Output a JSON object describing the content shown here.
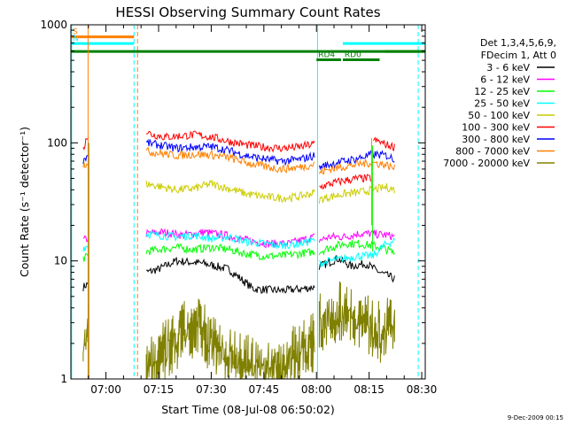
{
  "chart_data": {
    "type": "line",
    "title": "HESSI Observing Summary Count Rates",
    "xlabel": "Start Time (08-Jul-08 06:50:02)",
    "ylabel": "Count Rate (s⁻¹ detector⁻¹)",
    "y_scale": "log",
    "ylim": [
      1,
      1000
    ],
    "xlim_minutes_after_0650": [
      0,
      101
    ],
    "x_ticks": [
      {
        "label": "07:00",
        "minute": 10
      },
      {
        "label": "07:15",
        "minute": 25
      },
      {
        "label": "07:30",
        "minute": 40
      },
      {
        "label": "07:45",
        "minute": 55
      },
      {
        "label": "08:00",
        "minute": 70
      },
      {
        "label": "08:15",
        "minute": 85
      },
      {
        "label": "08:30",
        "minute": 100
      }
    ],
    "y_ticks": [
      {
        "label": "1",
        "value": 1
      },
      {
        "label": "10",
        "value": 10
      },
      {
        "label": "100",
        "value": 100
      },
      {
        "label": "1000",
        "value": 1000
      }
    ],
    "legend": {
      "placement": "right",
      "header": [
        "Det 1,3,4,5,6,9,",
        "FDecim 1, Att 0"
      ]
    },
    "series": [
      {
        "name": "3 - 6 keV",
        "color": "#000000",
        "segments": [
          {
            "x": [
              3.5,
              5.2
            ],
            "y": [
              6.0,
              6.5
            ]
          },
          {
            "x": [
              21.5,
              25,
              30,
              38,
              45,
              52,
              60,
              66,
              69.5
            ],
            "y": [
              8.0,
              8.5,
              10,
              9.5,
              8.5,
              5.8,
              5.6,
              5.8,
              6.0
            ]
          },
          {
            "x": [
              70.8,
              73,
              76,
              80,
              84,
              88,
              92.5
            ],
            "y": [
              9.0,
              9.5,
              10.5,
              9.0,
              9.5,
              8.0,
              7.0
            ]
          }
        ]
      },
      {
        "name": "6 - 12 keV",
        "color": "#ff00ff",
        "segments": [
          {
            "x": [
              3.5,
              5.2
            ],
            "y": [
              15,
              15.5
            ]
          },
          {
            "x": [
              21.5,
              26,
              32,
              38,
              44,
              50,
              56,
              62,
              66,
              69.5
            ],
            "y": [
              17,
              17.5,
              16.5,
              17.5,
              16.5,
              15,
              14,
              14,
              15,
              16
            ]
          },
          {
            "x": [
              70.8,
              74,
              78,
              82,
              86,
              90,
              92.5
            ],
            "y": [
              15,
              16,
              16,
              17,
              17,
              16.5,
              16
            ]
          }
        ]
      },
      {
        "name": "12 - 25 keV",
        "color": "#00ff00",
        "segments": [
          {
            "x": [
              3.5,
              5.2
            ],
            "y": [
              10.5,
              11
            ]
          },
          {
            "x": [
              21.5,
              25,
              30,
              35,
              40,
              45,
              50,
              55,
              60,
              65,
              69.5
            ],
            "y": [
              12,
              12.5,
              13,
              12.5,
              13,
              12.5,
              11.5,
              11,
              11,
              11.5,
              12
            ]
          },
          {
            "x": [
              70.8,
              74,
              78,
              82,
              86,
              90,
              92.5
            ],
            "y": [
              12,
              13,
              14,
              14,
              13.5,
              12.5,
              11.5
            ]
          }
        ]
      },
      {
        "name": "25 - 50 keV",
        "color": "#00ffff",
        "segments": [
          {
            "x": [
              3.5,
              5.2
            ],
            "y": [
              13,
              13.5
            ]
          },
          {
            "x": [
              21.5,
              25,
              30,
              35,
              40,
              45,
              50,
              55,
              60,
              65,
              69.5
            ],
            "y": [
              17,
              16.5,
              16,
              16.5,
              15.5,
              16,
              14.5,
              14,
              13.5,
              14,
              15
            ]
          },
          {
            "x": [
              70.8,
              74,
              78,
              82,
              86,
              90,
              92.5
            ],
            "y": [
              9.5,
              10,
              10.5,
              11,
              11,
              14,
              15
            ]
          }
        ]
      },
      {
        "name": "50 - 100 keV",
        "color": "#cccc00",
        "segments": [
          {
            "x": [
              21.5,
              25,
              30,
              35,
              40,
              45,
              50,
              55,
              60,
              65,
              69.5
            ],
            "y": [
              45,
              43,
              40,
              41,
              45,
              41,
              37,
              35,
              34,
              35,
              38
            ]
          },
          {
            "x": [
              70.8,
              74,
              78,
              82,
              86,
              88,
              90,
              92.5
            ],
            "y": [
              33,
              35,
              37,
              38,
              40,
              41,
              42,
              40
            ]
          }
        ]
      },
      {
        "name": "100 - 300 keV",
        "color": "#ff0000",
        "segments": [
          {
            "x": [
              3.5,
              5.2
            ],
            "y": [
              88,
              125
            ]
          },
          {
            "x": [
              21.5,
              23,
              27,
              32,
              36,
              40,
              45,
              50,
              55,
              60,
              65,
              69.5
            ],
            "y": [
              125,
              118,
              112,
              115,
              117,
              112,
              103,
              96,
              92,
              90,
              92,
              98
            ]
          },
          {
            "x": [
              70.8,
              74,
              78,
              82,
              85.5
            ],
            "y": [
              42,
              45,
              48,
              50,
              50
            ]
          },
          {
            "x": [
              86.2,
              88,
              90,
              92.5
            ],
            "y": [
              105,
              102,
              96,
              92
            ]
          }
        ]
      },
      {
        "name": "300 - 800 keV",
        "color": "#0000ff",
        "segments": [
          {
            "x": [
              3.5,
              5.2
            ],
            "y": [
              72,
              80
            ]
          },
          {
            "x": [
              21.5,
              25,
              30,
              35,
              40,
              45,
              50,
              55,
              60,
              65,
              69.5
            ],
            "y": [
              100,
              96,
              90,
              92,
              93,
              86,
              78,
              73,
              70,
              72,
              78
            ]
          },
          {
            "x": [
              70.8,
              74,
              78,
              82,
              86,
              90,
              92.5
            ],
            "y": [
              62,
              66,
              70,
              74,
              80,
              78,
              72
            ]
          }
        ]
      },
      {
        "name": "800 - 7000 keV",
        "color": "#ff8000",
        "segments": [
          {
            "x": [
              3.5,
              5.2
            ],
            "y": [
              65,
              70
            ]
          },
          {
            "x": [
              21.5,
              25,
              30,
              35,
              40,
              45,
              50,
              55,
              60,
              65,
              69.5
            ],
            "y": [
              85,
              82,
              78,
              80,
              79,
              75,
              68,
              63,
              60,
              62,
              66
            ]
          },
          {
            "x": [
              70.8,
              74,
              78,
              82,
              86,
              90,
              92.5
            ],
            "y": [
              56,
              60,
              63,
              66,
              68,
              65,
              60
            ]
          }
        ]
      },
      {
        "name": "7000 - 20000 keV",
        "color": "#808000",
        "segments": [
          {
            "x": [
              3.5,
              4.2,
              5.0,
              5.2
            ],
            "y": [
              1.8,
              2.2,
              2.8,
              3.0
            ]
          },
          {
            "x": [
              21.5,
              24,
              28,
              32,
              36,
              40,
              44,
              48,
              52,
              56,
              60,
              64,
              66,
              69.5
            ],
            "y": [
              1.5,
              1.8,
              2.2,
              3.0,
              3.5,
              2.5,
              2.0,
              1.7,
              1.5,
              1.4,
              1.6,
              2.0,
              2.3,
              2.5
            ]
          },
          {
            "x": [
              70.8,
              73,
              76,
              79,
              82,
              85,
              88,
              90,
              92.5
            ],
            "y": [
              3.5,
              4.0,
              4.5,
              4.5,
              4.0,
              3.5,
              3.0,
              3.2,
              3.5
            ]
          }
        ]
      }
    ],
    "spikes": [
      {
        "minute": 4.9,
        "color": "#ff8000",
        "y_top": 1000,
        "y_bottom": 1
      },
      {
        "minute": 5.1,
        "color": "#808000",
        "y_top": 100,
        "y_bottom": 1
      },
      {
        "minute": 85.7,
        "color": "#ff8000",
        "y_top": 110,
        "y_bottom": 20
      },
      {
        "minute": 86.0,
        "color": "#00ff00",
        "y_top": 95,
        "y_bottom": 12
      }
    ],
    "flag_bars": [
      {
        "label": "S",
        "color": "#ff8000",
        "x": [
          0,
          18
        ],
        "y": 790
      },
      {
        "label": "N",
        "color": "#00ffff",
        "x": [
          0,
          18
        ],
        "y": 695
      },
      {
        "label": "",
        "color": "#00ffff",
        "x": [
          77.5,
          101
        ],
        "y": 695
      },
      {
        "label": "",
        "color": "#008000",
        "x": [
          0,
          101
        ],
        "y": 595
      },
      {
        "label": "RD4",
        "color": "#008000",
        "x": [
          70,
          77
        ],
        "y": 505
      },
      {
        "label": "RD0",
        "color": "#008000",
        "x": [
          77.5,
          88
        ],
        "y": 505
      },
      {
        "label": "",
        "color": "#008000",
        "x": [
          89.5,
          101
        ],
        "y": 595
      }
    ],
    "vertical_markers": [
      {
        "minute": 0.2,
        "color": "#00ffff",
        "style": "solid"
      },
      {
        "minute": 18,
        "color": "#00ffff",
        "style": "dashed"
      },
      {
        "minute": 19,
        "color": "#ff8000",
        "style": "dashed"
      },
      {
        "minute": 70.3,
        "color": "#00ffff",
        "style": "solid"
      },
      {
        "minute": 99,
        "color": "#00ffff",
        "style": "dashed"
      }
    ]
  },
  "footer": {
    "timestamp": "9-Dec-2009 00:15"
  }
}
